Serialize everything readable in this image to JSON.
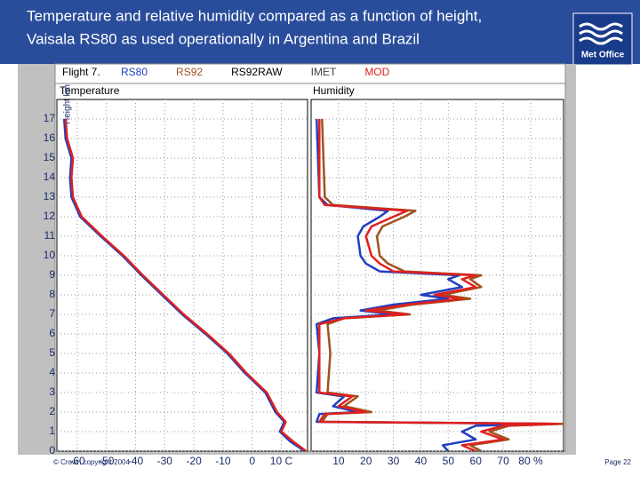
{
  "header": {
    "title_lines": [
      "Temperature and relative humidity compared as a function of height,",
      "Vaisala RS80 as used operationally in Argentina and Brazil"
    ],
    "logo_text": "Met Office"
  },
  "legend": {
    "title": "Flight 7.",
    "items": [
      {
        "name": "RS80",
        "color": "#1f3fbf"
      },
      {
        "name": "RS92",
        "color": "#a0521e"
      },
      {
        "name": "RS92RAW",
        "color": "#000000"
      },
      {
        "name": "IMET",
        "color": "#444444"
      },
      {
        "name": "MOD",
        "color": "#e0201e"
      }
    ]
  },
  "yaxis_label": "Height km",
  "chart_data": [
    {
      "type": "line",
      "title": "Temperature",
      "xlim": [
        -67,
        19
      ],
      "xticks": [
        -60,
        -50,
        -40,
        -30,
        -20,
        -10,
        0,
        {
          "value": 10,
          "label": "10 C"
        }
      ],
      "ylim": [
        0,
        18
      ],
      "yticks": [
        0,
        1,
        2,
        3,
        4,
        5,
        6,
        7,
        8,
        9,
        10,
        11,
        12,
        13,
        14,
        15,
        16,
        17
      ],
      "grid": true,
      "series": [
        {
          "color": "#1f3fbf",
          "x": [
            18,
            13,
            9.5,
            11,
            8,
            4.5,
            -2.5,
            -8.5,
            -16,
            -24,
            -31,
            -38,
            -44.5,
            -52,
            -59,
            -62,
            -62.5,
            -62,
            -64,
            -64.5
          ],
          "values": [
            0,
            0.5,
            1,
            1.5,
            2,
            3,
            4,
            5,
            6,
            7,
            8,
            9,
            10,
            11,
            12,
            13,
            14,
            15,
            16,
            17
          ]
        },
        {
          "color": "#e0201e",
          "x": [
            18.5,
            14,
            10,
            11.5,
            8.5,
            5,
            -2,
            -8,
            -15.5,
            -23.5,
            -30.5,
            -37.5,
            -44,
            -51.5,
            -58.5,
            -61.5,
            -62,
            -61.5,
            -63.5,
            -64
          ],
          "values": [
            0,
            0.5,
            1,
            1.5,
            2,
            3,
            4,
            5,
            6,
            7,
            8,
            9,
            10,
            11,
            12,
            13,
            14,
            15,
            16,
            17
          ]
        }
      ]
    },
    {
      "type": "line",
      "title": "Humidity",
      "xlim": [
        0,
        92
      ],
      "xticks": [
        10,
        20,
        30,
        40,
        50,
        60,
        70,
        {
          "value": 80,
          "label": "80 %"
        }
      ],
      "ylim": [
        0,
        18
      ],
      "yticks": [
        0,
        1,
        2,
        3,
        4,
        5,
        6,
        7,
        8,
        9,
        10,
        11,
        12,
        13,
        14,
        15,
        16,
        17
      ],
      "grid": true,
      "series": [
        {
          "color": "#a0521e",
          "x": [
            62,
            58,
            72,
            65,
            72,
            92,
            4,
            6,
            22,
            12,
            17,
            6,
            7,
            6,
            12,
            36,
            24,
            37,
            58,
            48,
            62,
            58,
            62,
            34,
            28,
            25,
            24,
            26,
            34,
            38,
            8,
            5,
            4
          ],
          "values": [
            0,
            0.3,
            0.6,
            1,
            1.3,
            1.4,
            1.5,
            1.9,
            2,
            2.3,
            2.8,
            3,
            5,
            6.5,
            6.8,
            7,
            7.2,
            7.5,
            7.8,
            8,
            8.4,
            8.8,
            9,
            9.2,
            9.6,
            10,
            11,
            11.5,
            12,
            12.3,
            12.6,
            13,
            17
          ]
        },
        {
          "color": "#1f3fbf",
          "x": [
            50,
            48,
            60,
            55,
            60,
            88,
            2,
            3,
            17,
            8,
            12,
            2,
            3,
            2,
            8,
            30,
            18,
            30,
            50,
            40,
            55,
            50,
            54,
            25,
            20,
            18,
            17,
            19,
            25,
            28,
            6,
            3,
            2
          ],
          "values": [
            0,
            0.3,
            0.6,
            1,
            1.3,
            1.4,
            1.5,
            1.9,
            2,
            2.3,
            2.8,
            3,
            5,
            6.5,
            6.8,
            7,
            7.2,
            7.5,
            7.8,
            8,
            8.4,
            8.8,
            9,
            9.2,
            9.6,
            10,
            11,
            11.5,
            12,
            12.3,
            12.6,
            13,
            17
          ]
        },
        {
          "color": "#e0201e",
          "x": [
            60,
            55,
            70,
            62,
            70,
            90,
            3,
            5,
            20,
            10,
            15,
            3,
            3,
            3,
            12,
            35,
            20,
            35,
            55,
            45,
            60,
            55,
            60,
            30,
            25,
            22,
            20,
            22,
            30,
            35,
            5,
            3,
            3
          ],
          "values": [
            0,
            0.3,
            0.6,
            1,
            1.3,
            1.4,
            1.5,
            1.9,
            2,
            2.3,
            2.8,
            3,
            5,
            6.5,
            6.8,
            7,
            7.2,
            7.5,
            7.8,
            8,
            8.4,
            8.8,
            9,
            9.2,
            9.6,
            10,
            11,
            11.5,
            12,
            12.3,
            12.6,
            13,
            17
          ]
        }
      ]
    }
  ],
  "footer": {
    "copyright": "© Crown copyright 2004",
    "page": "Page 22"
  }
}
